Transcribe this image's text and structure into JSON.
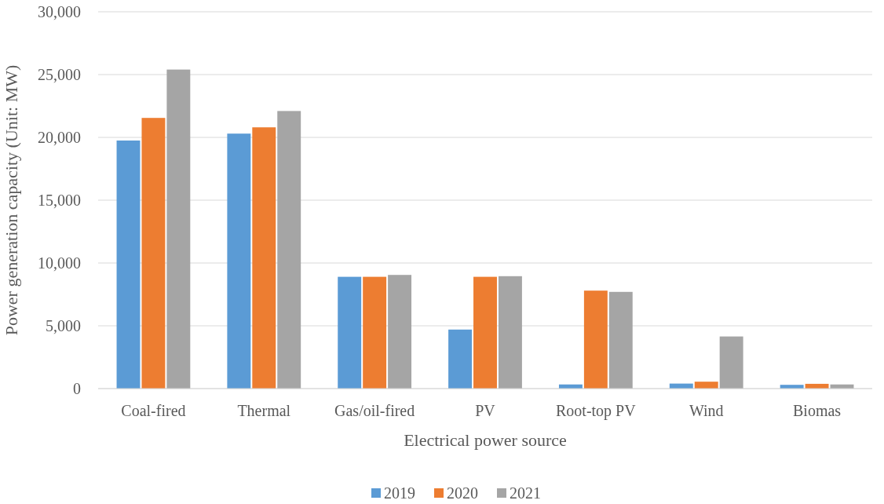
{
  "chart_data": {
    "type": "bar",
    "xlabel": "Electrical power source",
    "ylabel": "Power generation capacity (Unit: MW)",
    "categories": [
      "Coal-fired",
      "Thermal",
      "Gas/oil-fired",
      "PV",
      "Root-top PV",
      "Wind",
      "Biomas"
    ],
    "series": [
      {
        "name": "2019",
        "color": "#5b9bd5",
        "values": [
          19750,
          20300,
          8900,
          4700,
          330,
          400,
          300
        ]
      },
      {
        "name": "2020",
        "color": "#ed7d31",
        "values": [
          21550,
          20800,
          8900,
          8900,
          7800,
          550,
          380
        ]
      },
      {
        "name": "2021",
        "color": "#a5a5a5",
        "values": [
          25400,
          22100,
          9050,
          8950,
          7700,
          4150,
          330
        ]
      }
    ],
    "ylim": [
      0,
      30000
    ],
    "yticks": [
      {
        "value": 0,
        "label": "0"
      },
      {
        "value": 5000,
        "label": "5,000"
      },
      {
        "value": 10000,
        "label": "10,000"
      },
      {
        "value": 15000,
        "label": "15,000"
      },
      {
        "value": 20000,
        "label": "20,000"
      },
      {
        "value": 25000,
        "label": "25,000"
      },
      {
        "value": 30000,
        "label": "30,000"
      }
    ],
    "grid": "y",
    "legend": "bottom"
  }
}
